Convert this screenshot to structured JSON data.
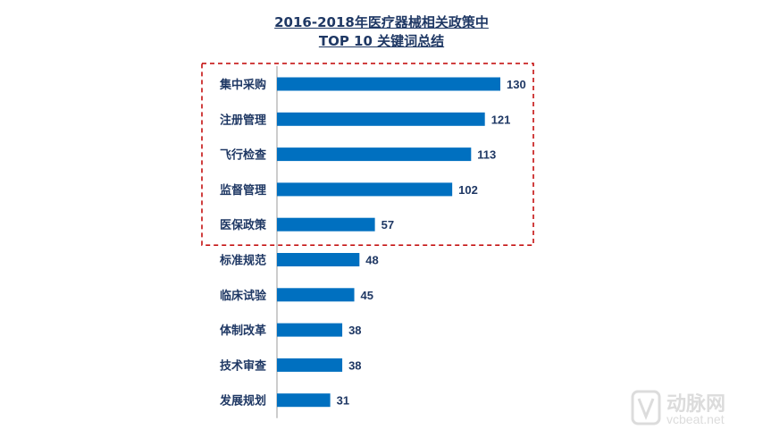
{
  "chart_data": {
    "type": "bar",
    "orientation": "horizontal",
    "title": "2016-2018年医疗器械相关政策中",
    "subtitle": "TOP 10 关键词总结",
    "categories": [
      "集中采购",
      "注册管理",
      "飞行检查",
      "监督管理",
      "医保政策",
      "标准规范",
      "临床试验",
      "体制改革",
      "技术审查",
      "发展规划"
    ],
    "values": [
      130,
      121,
      113,
      102,
      57,
      48,
      45,
      38,
      38,
      31
    ],
    "bar_color": "#0070c0",
    "highlight_color": "#c00000",
    "highlighted_count": 5,
    "grid": false,
    "xlim": [
      0,
      130
    ]
  },
  "watermark": {
    "brand": "动脉网",
    "url": "vcbeat.net"
  }
}
